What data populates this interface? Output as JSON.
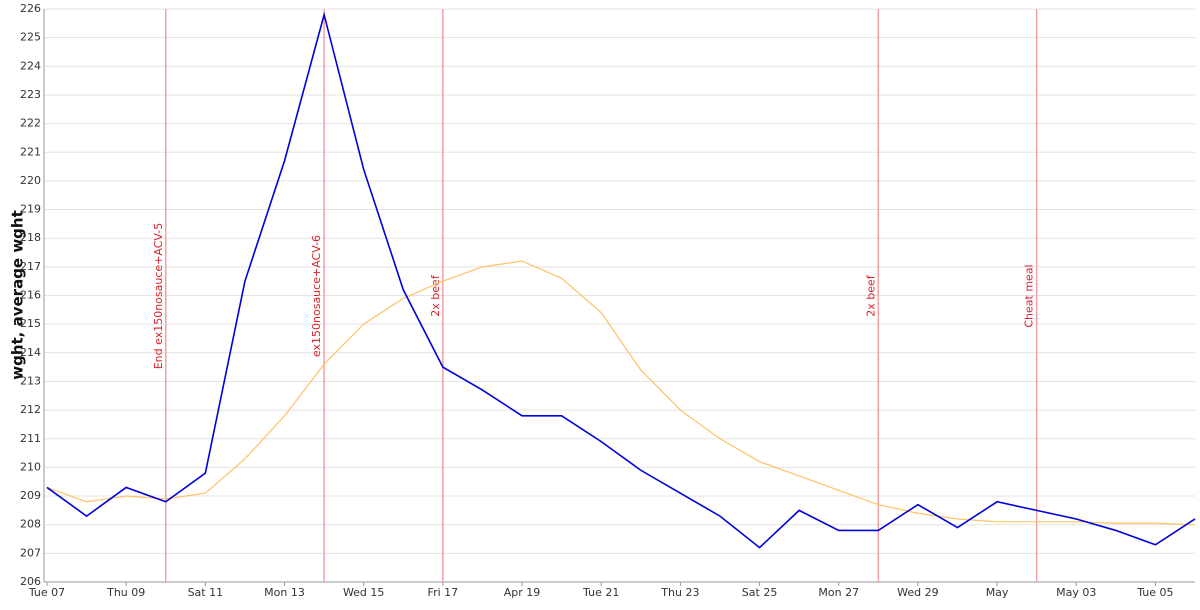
{
  "chart_data": {
    "type": "line",
    "ylabel": "wght, average wght",
    "x": [
      "04-07",
      "04-08",
      "04-09",
      "04-10",
      "04-11",
      "04-12",
      "04-13",
      "04-14",
      "04-15",
      "04-16",
      "04-17",
      "04-18",
      "04-19",
      "04-20",
      "04-21",
      "04-22",
      "04-23",
      "04-24",
      "04-25",
      "04-26",
      "04-27",
      "04-28",
      "04-29",
      "04-30",
      "05-01",
      "05-02",
      "05-03",
      "05-04",
      "05-05",
      "05-06"
    ],
    "series": [
      {
        "color": "#0000dd",
        "values": [
          209.3,
          208.3,
          209.3,
          208.8,
          209.8,
          216.5,
          220.7,
          225.8,
          220.4,
          216.2,
          213.5,
          212.7,
          211.8,
          211.8,
          210.9,
          209.9,
          209.1,
          208.3,
          207.2,
          208.5,
          207.8,
          207.8,
          208.7,
          207.9,
          208.8,
          208.5,
          208.2,
          207.8,
          207.3,
          208.2
        ]
      },
      {
        "color": "#ffc266",
        "values": [
          209.3,
          208.8,
          209.0,
          208.9,
          209.1,
          210.3,
          211.8,
          213.6,
          215.0,
          215.9,
          216.5,
          217.0,
          217.2,
          216.6,
          215.4,
          213.4,
          212.0,
          211.0,
          210.2,
          209.7,
          209.2,
          208.7,
          208.4,
          208.2,
          208.1,
          208.1,
          208.1,
          208.05,
          208.05,
          208.0
        ]
      }
    ],
    "ylim": [
      206,
      226
    ],
    "yticks": [
      206,
      207,
      208,
      209,
      210,
      211,
      212,
      213,
      214,
      215,
      216,
      217,
      218,
      219,
      220,
      221,
      222,
      223,
      224,
      225,
      226
    ],
    "xticks": [
      {
        "value": "04-07",
        "label": "Tue 07"
      },
      {
        "value": "04-09",
        "label": "Thu 09"
      },
      {
        "value": "04-11",
        "label": "Sat 11"
      },
      {
        "value": "04-13",
        "label": "Mon 13"
      },
      {
        "value": "04-15",
        "label": "Wed 15"
      },
      {
        "value": "04-17",
        "label": "Fri 17"
      },
      {
        "value": "04-19",
        "label": "Apr 19"
      },
      {
        "value": "04-21",
        "label": "Tue 21"
      },
      {
        "value": "04-23",
        "label": "Thu 23"
      },
      {
        "value": "04-25",
        "label": "Sat 25"
      },
      {
        "value": "04-27",
        "label": "Mon 27"
      },
      {
        "value": "04-29",
        "label": "Wed 29"
      },
      {
        "value": "05-01",
        "label": "May"
      },
      {
        "value": "05-03",
        "label": "May 03"
      },
      {
        "value": "05-05",
        "label": "Tue 05"
      }
    ],
    "annotations": [
      {
        "x": "04-10",
        "label": "End ex150nosauce+ACV-5"
      },
      {
        "x": "04-14",
        "label": "ex150nosauce+ACV-6"
      },
      {
        "x": "04-17",
        "label": "2x beef"
      },
      {
        "x": "04-28",
        "label": "2x beef"
      },
      {
        "x": "05-02",
        "label": "Cheat meal"
      }
    ],
    "grid": true
  }
}
